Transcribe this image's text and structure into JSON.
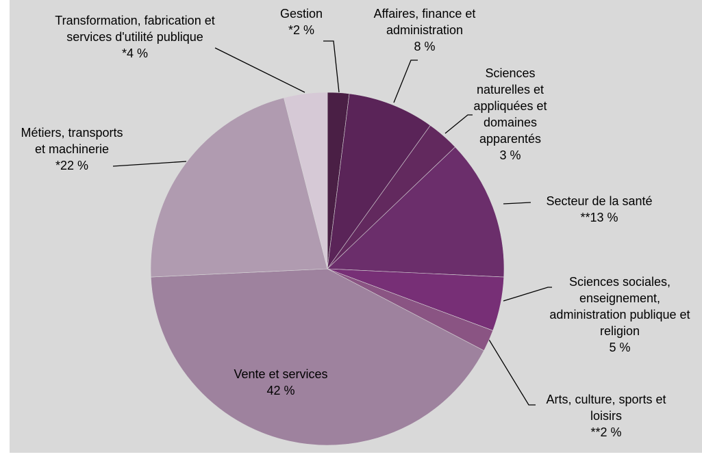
{
  "chart_data": {
    "type": "pie",
    "categories": [
      "Gestion",
      "Affaires, finance et administration",
      "Sciences naturelles et appliquées et domaines apparentés",
      "Secteur de la santé",
      "Sciences sociales, enseignement, administration publique et religion",
      "Arts, culture, sports et loisirs",
      "Vente et services",
      "Métiers, transports et machinerie",
      "Transformation, fabrication et services d'utilité publique"
    ],
    "values": [
      2,
      8,
      3,
      13,
      5,
      2,
      42,
      22,
      4
    ],
    "value_labels": [
      "*2 %",
      "8 %",
      "3 %",
      "**13 %",
      "5 %",
      "**2 %",
      "42 %",
      "*22 %",
      "*4 %"
    ],
    "colors": [
      "#4a1f45",
      "#5a2458",
      "#62295e",
      "#6b2e6b",
      "#772f76",
      "#8a5483",
      "#9e829e",
      "#b09bb0",
      "#d6c9d6"
    ]
  }
}
